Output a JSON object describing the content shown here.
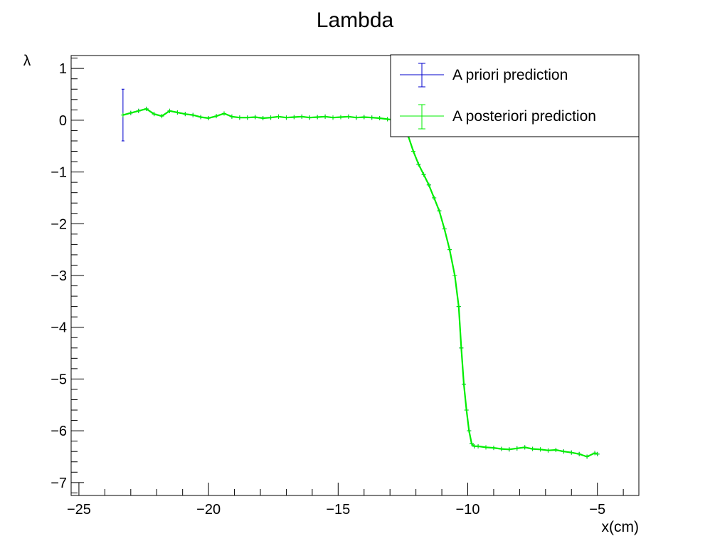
{
  "chart_data": {
    "type": "line",
    "title": "Lambda",
    "xlabel": "x(cm)",
    "ylabel": "λ",
    "xlim": [
      -25.3,
      -3.4
    ],
    "ylim": [
      -7.25,
      1.25
    ],
    "xticks": [
      -25,
      -20,
      -15,
      -10,
      -5
    ],
    "yticks": [
      1,
      0,
      -1,
      -2,
      -3,
      -4,
      -5,
      -6,
      -7
    ],
    "legend_position": "top-right",
    "series": [
      {
        "name": "A priori prediction",
        "color": "#0000cc",
        "x": [
          -23.3,
          -23.0,
          -22.7,
          -22.4,
          -22.1,
          -21.8,
          -21.5,
          -21.2,
          -20.9,
          -20.6,
          -20.3,
          -20.0,
          -19.7,
          -19.4,
          -19.1,
          -18.8,
          -18.5,
          -18.2,
          -17.9,
          -17.6,
          -17.3,
          -17.0,
          -16.7,
          -16.4,
          -16.1,
          -15.8,
          -15.5,
          -15.2,
          -14.9,
          -14.6,
          -14.3,
          -14.0,
          -13.7,
          -13.4,
          -13.1,
          -12.8,
          -12.5,
          -12.3,
          -12.1,
          -11.9,
          -11.7,
          -11.5,
          -11.3,
          -11.1,
          -10.9,
          -10.7,
          -10.5,
          -10.35,
          -10.25,
          -10.15,
          -10.05,
          -9.95,
          -9.85,
          -9.75,
          -9.6,
          -9.3,
          -9.0,
          -8.7,
          -8.4,
          -8.1,
          -7.8,
          -7.5,
          -7.2,
          -6.9,
          -6.6,
          -6.3,
          -6.0,
          -5.7,
          -5.4,
          -5.1,
          -5.0
        ],
        "y": [
          0.1,
          0.14,
          0.18,
          0.22,
          0.12,
          0.08,
          0.18,
          0.15,
          0.12,
          0.1,
          0.06,
          0.04,
          0.08,
          0.13,
          0.07,
          0.05,
          0.05,
          0.06,
          0.04,
          0.05,
          0.07,
          0.05,
          0.06,
          0.07,
          0.05,
          0.06,
          0.07,
          0.05,
          0.06,
          0.07,
          0.05,
          0.06,
          0.05,
          0.04,
          0.02,
          0.0,
          -0.1,
          -0.3,
          -0.6,
          -0.85,
          -1.05,
          -1.25,
          -1.5,
          -1.75,
          -2.1,
          -2.5,
          -3.0,
          -3.6,
          -4.4,
          -5.1,
          -5.6,
          -6.0,
          -6.25,
          -6.3,
          -6.3,
          -6.32,
          -6.33,
          -6.35,
          -6.36,
          -6.34,
          -6.32,
          -6.35,
          -6.36,
          -6.38,
          -6.37,
          -6.4,
          -6.42,
          -6.45,
          -6.5,
          -6.43,
          -6.45
        ],
        "first_point_error": 0.5
      },
      {
        "name": "A posteriori prediction",
        "color": "#00ee00",
        "x": [
          -23.3,
          -23.0,
          -22.7,
          -22.4,
          -22.1,
          -21.8,
          -21.5,
          -21.2,
          -20.9,
          -20.6,
          -20.3,
          -20.0,
          -19.7,
          -19.4,
          -19.1,
          -18.8,
          -18.5,
          -18.2,
          -17.9,
          -17.6,
          -17.3,
          -17.0,
          -16.7,
          -16.4,
          -16.1,
          -15.8,
          -15.5,
          -15.2,
          -14.9,
          -14.6,
          -14.3,
          -14.0,
          -13.7,
          -13.4,
          -13.1,
          -12.8,
          -12.5,
          -12.3,
          -12.1,
          -11.9,
          -11.7,
          -11.5,
          -11.3,
          -11.1,
          -10.9,
          -10.7,
          -10.5,
          -10.35,
          -10.25,
          -10.15,
          -10.05,
          -9.95,
          -9.85,
          -9.75,
          -9.6,
          -9.3,
          -9.0,
          -8.7,
          -8.4,
          -8.1,
          -7.8,
          -7.5,
          -7.2,
          -6.9,
          -6.6,
          -6.3,
          -6.0,
          -5.7,
          -5.4,
          -5.1,
          -5.0
        ],
        "y": [
          0.1,
          0.14,
          0.18,
          0.22,
          0.12,
          0.08,
          0.18,
          0.15,
          0.12,
          0.1,
          0.06,
          0.04,
          0.08,
          0.13,
          0.07,
          0.05,
          0.05,
          0.06,
          0.04,
          0.05,
          0.07,
          0.05,
          0.06,
          0.07,
          0.05,
          0.06,
          0.07,
          0.05,
          0.06,
          0.07,
          0.05,
          0.06,
          0.05,
          0.04,
          0.02,
          0.0,
          -0.1,
          -0.3,
          -0.6,
          -0.85,
          -1.05,
          -1.25,
          -1.5,
          -1.75,
          -2.1,
          -2.5,
          -3.0,
          -3.6,
          -4.4,
          -5.1,
          -5.6,
          -6.0,
          -6.25,
          -6.3,
          -6.3,
          -6.32,
          -6.33,
          -6.35,
          -6.36,
          -6.34,
          -6.32,
          -6.35,
          -6.36,
          -6.38,
          -6.37,
          -6.4,
          -6.42,
          -6.45,
          -6.5,
          -6.43,
          -6.45
        ]
      }
    ]
  }
}
